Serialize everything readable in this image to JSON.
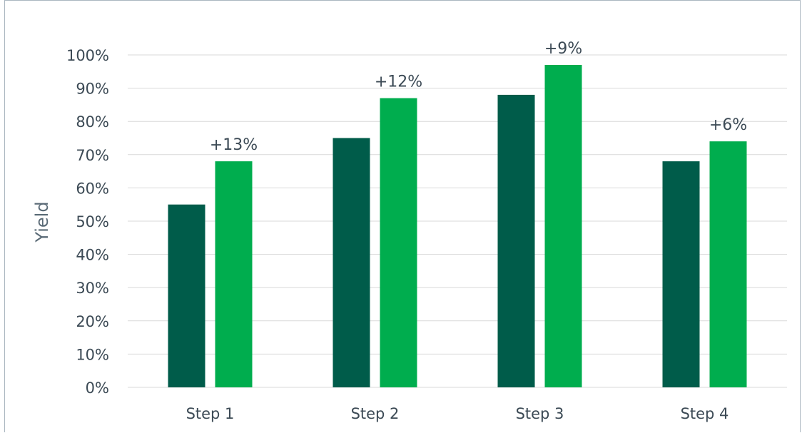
{
  "chart_data": {
    "type": "bar",
    "categories": [
      "Step 1",
      "Step 2",
      "Step 3",
      "Step 4"
    ],
    "series": [
      {
        "values": [
          55,
          75,
          88,
          68
        ],
        "color": "#005c4a"
      },
      {
        "values": [
          68,
          87,
          97,
          74
        ],
        "color": "#00ad4e"
      }
    ],
    "data_labels": [
      "+13%",
      "+12%",
      "+9%",
      "+6%"
    ],
    "title": "",
    "xlabel": "",
    "ylabel": "Yield",
    "ylim": [
      0,
      100
    ],
    "y_ticks": [
      "0%",
      "10%",
      "20%",
      "30%",
      "40%",
      "50%",
      "60%",
      "70%",
      "80%",
      "90%",
      "100%"
    ],
    "grid": true,
    "legend": "none"
  }
}
